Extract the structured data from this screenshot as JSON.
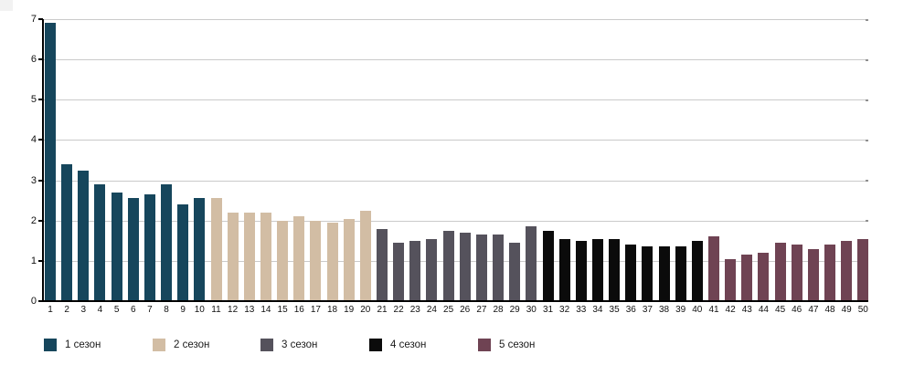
{
  "chart_data": {
    "type": "bar",
    "title": "",
    "xlabel": "",
    "ylabel": "",
    "categories": [
      "1",
      "2",
      "3",
      "4",
      "5",
      "6",
      "7",
      "8",
      "9",
      "10",
      "11",
      "12",
      "13",
      "14",
      "15",
      "16",
      "17",
      "18",
      "19",
      "20",
      "21",
      "22",
      "23",
      "24",
      "25",
      "26",
      "27",
      "28",
      "29",
      "30",
      "31",
      "32",
      "33",
      "34",
      "35",
      "36",
      "37",
      "38",
      "39",
      "40",
      "41",
      "42",
      "43",
      "44",
      "45",
      "46",
      "47",
      "48",
      "49",
      "50"
    ],
    "series": [
      {
        "name": "1 сезон",
        "color": "#16465c",
        "values": [
          6.9,
          3.4,
          3.25,
          2.9,
          2.7,
          2.55,
          2.65,
          2.9,
          2.4,
          2.55
        ]
      },
      {
        "name": "2 сезон",
        "color": "#d2bda4",
        "values": [
          2.55,
          2.2,
          2.2,
          2.2,
          2.0,
          2.1,
          2.0,
          1.95,
          2.05,
          2.25
        ]
      },
      {
        "name": "3 сезон",
        "color": "#55525c",
        "values": [
          1.8,
          1.45,
          1.5,
          1.55,
          1.75,
          1.7,
          1.65,
          1.65,
          1.45,
          1.85
        ]
      },
      {
        "name": "4 сезон",
        "color": "#0b0b0b",
        "values": [
          1.75,
          1.55,
          1.5,
          1.55,
          1.55,
          1.4,
          1.35,
          1.35,
          1.35,
          1.5
        ]
      },
      {
        "name": "5 сезон",
        "color": "#6f4353",
        "values": [
          1.6,
          1.05,
          1.15,
          1.2,
          1.45,
          1.4,
          1.3,
          1.4,
          1.5,
          1.55
        ]
      }
    ],
    "ylim": [
      0,
      7
    ],
    "yticks": [
      0,
      1,
      2,
      3,
      4,
      5,
      6,
      7
    ],
    "grid": "horizontal",
    "legend_position": "bottom"
  }
}
